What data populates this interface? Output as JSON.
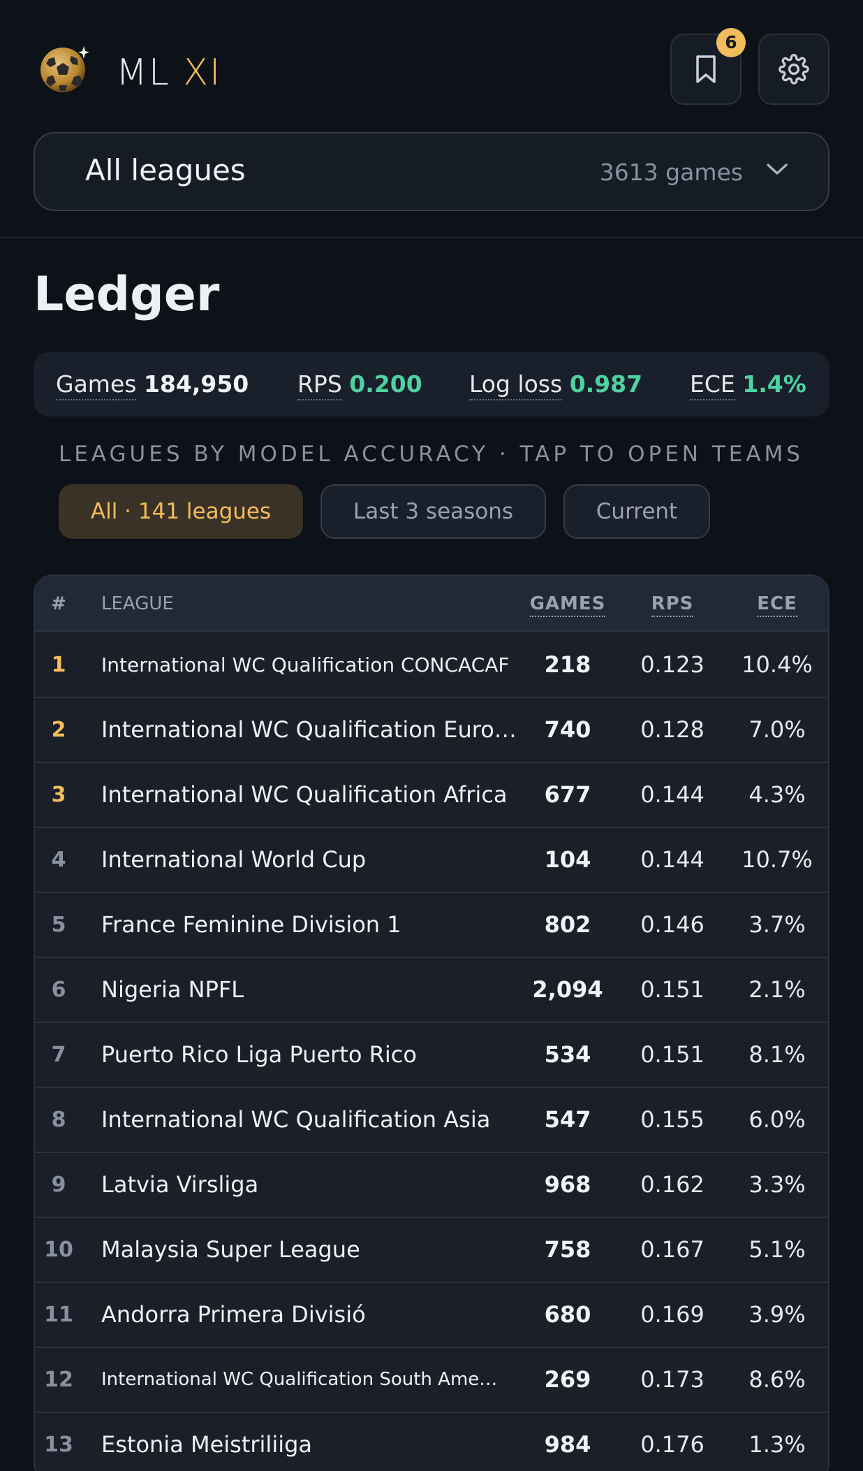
{
  "app": {
    "brand_prefix": "ML",
    "brand_suffix": "XI",
    "bookmark_count": "6"
  },
  "league_selector": {
    "label": "All leagues",
    "count": "3613 games"
  },
  "ledger": {
    "title": "Ledger",
    "metrics": [
      {
        "label": "Games",
        "value": "184,950"
      },
      {
        "label": "RPS",
        "value": "0.200"
      },
      {
        "label": "Log loss",
        "value": "0.987"
      },
      {
        "label": "ECE",
        "value": "1.4%"
      }
    ],
    "subheading": "LEAGUES BY MODEL ACCURACY · TAP TO OPEN TEAMS",
    "filters": [
      {
        "label": "All · 141 leagues",
        "active": true
      },
      {
        "label": "Last 3 seasons",
        "active": false
      },
      {
        "label": "Current",
        "active": false
      }
    ]
  },
  "table": {
    "headers": {
      "rank": "#",
      "league": "LEAGUE",
      "games": "GAMES",
      "rps": "RPS",
      "ece": "ECE"
    },
    "rows": [
      {
        "rank": "1",
        "league": "International WC Qualification CONCACAF",
        "games": "218",
        "rps": "0.123",
        "ece": "10.4%"
      },
      {
        "rank": "2",
        "league": "International WC Qualification Europe",
        "games": "740",
        "rps": "0.128",
        "ece": "7.0%"
      },
      {
        "rank": "3",
        "league": "International WC Qualification Africa",
        "games": "677",
        "rps": "0.144",
        "ece": "4.3%"
      },
      {
        "rank": "4",
        "league": "International World Cup",
        "games": "104",
        "rps": "0.144",
        "ece": "10.7%"
      },
      {
        "rank": "5",
        "league": "France Feminine Division 1",
        "games": "802",
        "rps": "0.146",
        "ece": "3.7%"
      },
      {
        "rank": "6",
        "league": "Nigeria NPFL",
        "games": "2,094",
        "rps": "0.151",
        "ece": "2.1%"
      },
      {
        "rank": "7",
        "league": "Puerto Rico Liga Puerto Rico",
        "games": "534",
        "rps": "0.151",
        "ece": "8.1%"
      },
      {
        "rank": "8",
        "league": "International WC Qualification Asia",
        "games": "547",
        "rps": "0.155",
        "ece": "6.0%"
      },
      {
        "rank": "9",
        "league": "Latvia Virsliga",
        "games": "968",
        "rps": "0.162",
        "ece": "3.3%"
      },
      {
        "rank": "10",
        "league": "Malaysia Super League",
        "games": "758",
        "rps": "0.167",
        "ece": "5.1%"
      },
      {
        "rank": "11",
        "league": "Andorra Primera Divisió",
        "games": "680",
        "rps": "0.169",
        "ece": "3.9%"
      },
      {
        "rank": "12",
        "league": "International WC Qualification South Ame…",
        "games": "269",
        "rps": "0.173",
        "ece": "8.6%"
      },
      {
        "rank": "13",
        "league": "Estonia Meistriliiga",
        "games": "984",
        "rps": "0.176",
        "ece": "1.3%"
      }
    ]
  },
  "colors": {
    "accent": "#f2bd5c",
    "positive": "#4fd1a0",
    "background": "#0d1118"
  },
  "icons": [
    "soccer-ball-logo-icon",
    "bookmark-icon",
    "gear-icon",
    "chevron-down-icon"
  ]
}
